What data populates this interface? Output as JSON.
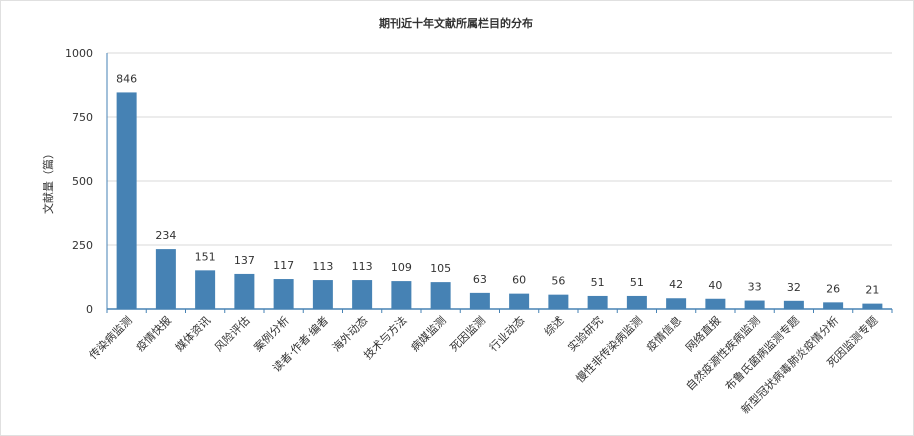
{
  "chart_data": {
    "type": "bar",
    "title": "期刊近十年文献所属栏目的分布",
    "xlabel": "",
    "ylabel": "文献量（篇）",
    "ylim": [
      0,
      1000
    ],
    "yticks": [
      "0",
      "250",
      "500",
      "750",
      "1000"
    ],
    "grid": true,
    "legend": "none",
    "color": "#4682b4",
    "categories": [
      "传染病监测",
      "疫情快报",
      "媒体资讯",
      "风险评估",
      "案例分析",
      "读者·作者·编者",
      "海外动态",
      "技术与方法",
      "病媒监测",
      "死因监测",
      "行业动态",
      "综述",
      "实验研究",
      "慢性非传染病监测",
      "疫情信息",
      "网络直报",
      "自然疫源性疾病监测",
      "布鲁氏菌病监测专题",
      "新型冠状病毒肺炎疫情分析",
      "死因监测专题"
    ],
    "values": [
      846,
      234,
      151,
      137,
      117,
      113,
      113,
      109,
      105,
      63,
      60,
      56,
      51,
      51,
      42,
      40,
      33,
      32,
      26,
      21
    ],
    "data_labels": [
      "846",
      "234",
      "151",
      "137",
      "117",
      "113",
      "113",
      "109",
      "105",
      "63",
      "60",
      "56",
      "51",
      "51",
      "42",
      "40",
      "33",
      "32",
      "26",
      "21"
    ]
  }
}
